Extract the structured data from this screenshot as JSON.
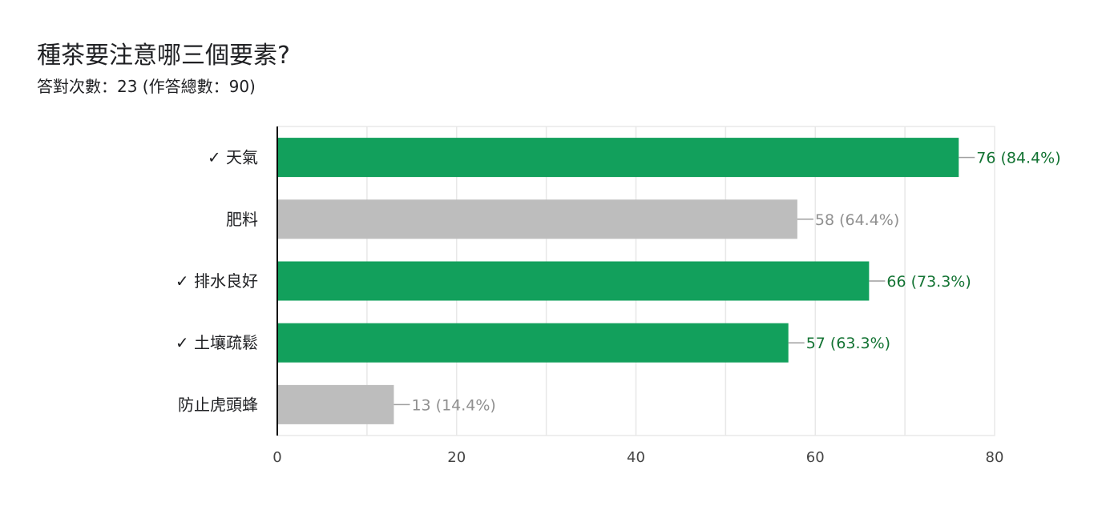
{
  "question": {
    "title": "種茶要注意哪三個要素?",
    "summary": "答對次數：23 (作答總數：90)"
  },
  "colors": {
    "correct_bar": "#12a05c",
    "incorrect_bar": "#bdbdbd",
    "correct_label": "#137333",
    "incorrect_label": "#909090",
    "grid": "#e8e8e8",
    "axis": "#000000"
  },
  "chart_data": {
    "type": "bar",
    "orientation": "horizontal",
    "categories": [
      "✓ 天氣",
      "肥料",
      "✓ 排水良好",
      "✓ 土壤疏鬆",
      "防止虎頭蜂"
    ],
    "values": [
      76,
      58,
      66,
      57,
      13
    ],
    "correct": [
      true,
      false,
      true,
      true,
      false
    ],
    "data_labels": [
      "76 (84.4%)",
      "58 (64.4%)",
      "66 (73.3%)",
      "57 (63.3%)",
      "13 (14.4%)"
    ],
    "xlim": [
      0,
      80
    ],
    "x_ticks": [
      0,
      20,
      40,
      60,
      80
    ],
    "grid": true
  }
}
